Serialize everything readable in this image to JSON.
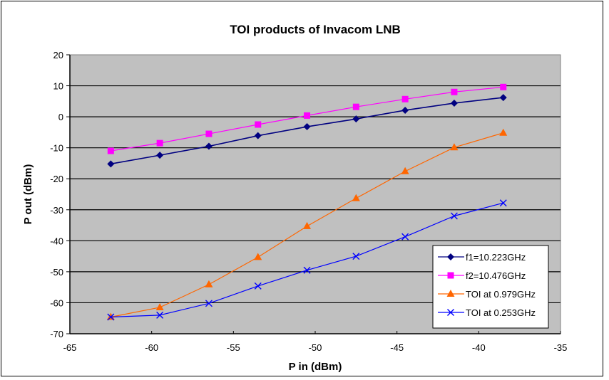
{
  "chart_data": {
    "type": "line",
    "title": "TOI products of Invacom LNB",
    "xlabel": "P in (dBm)",
    "ylabel": "P out (dBm)",
    "xlim": [
      -65,
      -35
    ],
    "ylim": [
      -70,
      20
    ],
    "x_ticks": [
      "-65",
      "-60",
      "-55",
      "-50",
      "-45",
      "-40",
      "-35"
    ],
    "y_ticks": [
      "20",
      "10",
      "0",
      "-10",
      "-20",
      "-30",
      "-40",
      "-50",
      "-60",
      "-70"
    ],
    "x_tick_values": [
      -65,
      -60,
      -55,
      -50,
      -45,
      -40,
      -35
    ],
    "y_tick_values": [
      20,
      10,
      0,
      -10,
      -20,
      -30,
      -40,
      -50,
      -60,
      -70
    ],
    "grid": "horizontal",
    "plot_background": "#c0c0c0",
    "legend_position": "bottom-right",
    "x": [
      -62.5,
      -59.5,
      -56.5,
      -53.5,
      -50.5,
      -47.5,
      -44.5,
      -41.5,
      -38.5
    ],
    "series": [
      {
        "name": "f1=10.223GHz",
        "color": "#000080",
        "marker": "diamond",
        "values": [
          -15.2,
          -12.4,
          -9.5,
          -6.1,
          -3.2,
          -0.7,
          2.1,
          4.4,
          6.2
        ]
      },
      {
        "name": "f2=10.476GHz",
        "color": "#ff00ff",
        "marker": "square",
        "values": [
          -11.0,
          -8.5,
          -5.5,
          -2.5,
          0.4,
          3.2,
          5.7,
          8.0,
          9.6
        ]
      },
      {
        "name": "TOI at 0.979GHz",
        "color": "#ff6600",
        "marker": "triangle",
        "values": [
          -64.6,
          -61.5,
          -54.1,
          -45.3,
          -35.3,
          -26.3,
          -17.6,
          -9.9,
          -5.2
        ]
      },
      {
        "name": "TOI at 0.253GHz",
        "color": "#0000ff",
        "marker": "x",
        "values": [
          -64.6,
          -64.0,
          -60.2,
          -54.6,
          -49.5,
          -45.0,
          -38.7,
          -32.0,
          -27.8
        ]
      }
    ]
  }
}
